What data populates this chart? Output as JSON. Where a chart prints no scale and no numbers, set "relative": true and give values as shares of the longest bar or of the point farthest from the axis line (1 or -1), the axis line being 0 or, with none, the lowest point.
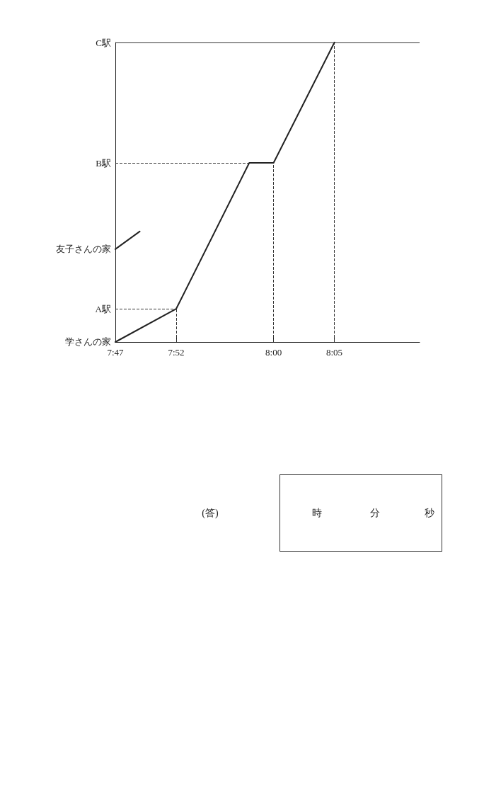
{
  "chart_data": {
    "type": "line",
    "relative": true,
    "xlim": [
      7.7833,
      8.2
    ],
    "xticks": [
      {
        "value": 7.7833,
        "label": "7:47"
      },
      {
        "value": 7.8667,
        "label": "7:52"
      },
      {
        "value": 8.0,
        "label": "8:00"
      },
      {
        "value": 8.0833,
        "label": "8:05"
      }
    ],
    "series": [
      {
        "color": "#222222",
        "x": [
          7.7833,
          7.8667,
          7.9667,
          8.0,
          8.0833
        ],
        "values": [
          0,
          0.111,
          0.598,
          0.598,
          1
        ]
      },
      {
        "color": "#222222",
        "x": [
          7.7833,
          7.8167
        ],
        "values": [
          0.31,
          0.369
        ]
      }
    ],
    "marker": "none",
    "line_style": "solid",
    "ref_lines": [
      {
        "axis": "y",
        "value": 0.111,
        "label": "A駅",
        "line_style": "dashed"
      },
      {
        "axis": "y",
        "value": 0.598,
        "label": "B駅",
        "line_style": "dashed"
      },
      {
        "axis": "y",
        "value": 1,
        "label": "C駅",
        "line_style": "solid"
      },
      {
        "axis": "x",
        "value": 7.8667,
        "line_style": "dashed"
      },
      {
        "axis": "x",
        "value": 8.0,
        "line_style": "dashed"
      },
      {
        "axis": "x",
        "value": 8.0833,
        "line_style": "dashed"
      }
    ],
    "annotations": [
      {
        "text": "学さんの家",
        "x": 7.7833,
        "y": 0
      },
      {
        "text": "友子さんの家",
        "x": 7.7833,
        "y": 0.31
      },
      "(答)",
      "時",
      "分",
      "秒"
    ]
  }
}
